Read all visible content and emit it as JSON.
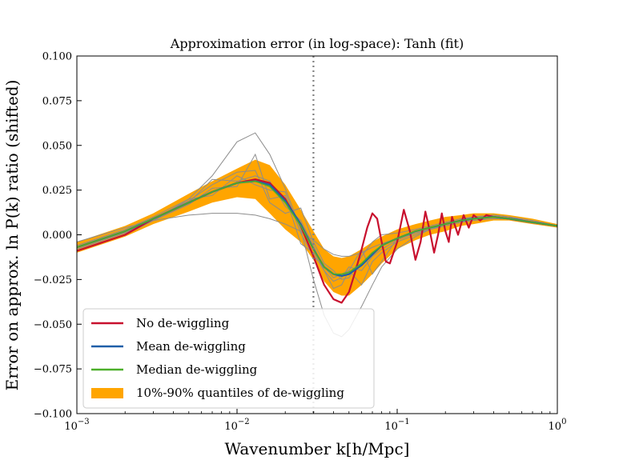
{
  "chart_data": {
    "type": "line",
    "title": "Approximation error (in log-space): Tanh (fit)",
    "xlabel": "Wavenumber k[h/Mpc]",
    "ylabel": "Error on approx. ln P(k) ratio (shifted)",
    "xscale": "log",
    "xlim": [
      0.001,
      1
    ],
    "ylim": [
      -0.1,
      0.1
    ],
    "x_ticks": [
      {
        "value": 0.001,
        "base": "10",
        "exp": "−3"
      },
      {
        "value": 0.01,
        "base": "10",
        "exp": "−2"
      },
      {
        "value": 0.1,
        "base": "10",
        "exp": "−1"
      },
      {
        "value": 1,
        "base": "10",
        "exp": "0"
      }
    ],
    "y_ticks": [
      {
        "value": 0.1,
        "label": "0.100"
      },
      {
        "value": 0.075,
        "label": "0.075"
      },
      {
        "value": 0.05,
        "label": "0.050"
      },
      {
        "value": 0.025,
        "label": "0.025"
      },
      {
        "value": 0.0,
        "label": "0.000"
      },
      {
        "value": -0.025,
        "label": "−0.025"
      },
      {
        "value": -0.05,
        "label": "−0.050"
      },
      {
        "value": -0.075,
        "label": "−0.075"
      },
      {
        "value": -0.1,
        "label": "−0.100"
      }
    ],
    "vline": {
      "x": 0.03,
      "style": "dotted",
      "color": "#808080"
    },
    "legend_position": "lower-left",
    "colors": {
      "no_dewiggling": "#c8102e",
      "mean": "#1f5fa8",
      "median": "#4caf2a",
      "quantile_band": "#ffa500",
      "samples": "#8c8c8c"
    },
    "legend": [
      {
        "key": "no_dewiggling",
        "label": "No de-wiggling",
        "kind": "line"
      },
      {
        "key": "mean",
        "label": "Mean de-wiggling",
        "kind": "line"
      },
      {
        "key": "median",
        "label": "Median de-wiggling",
        "kind": "line"
      },
      {
        "key": "quantile_band",
        "label": "10%-90% quantiles of de-wiggling",
        "kind": "patch"
      }
    ],
    "series": [
      {
        "key": "no_dewiggling",
        "name": "No de-wiggling",
        "x": [
          0.001,
          0.002,
          0.003,
          0.005,
          0.007,
          0.01,
          0.013,
          0.016,
          0.02,
          0.025,
          0.03,
          0.035,
          0.04,
          0.045,
          0.05,
          0.055,
          0.06,
          0.065,
          0.07,
          0.075,
          0.08,
          0.085,
          0.09,
          0.1,
          0.11,
          0.12,
          0.13,
          0.14,
          0.15,
          0.16,
          0.17,
          0.18,
          0.19,
          0.2,
          0.21,
          0.22,
          0.24,
          0.26,
          0.28,
          0.3,
          0.33,
          0.36,
          0.4,
          0.5,
          0.7,
          1.0
        ],
        "y": [
          -0.009,
          0.0,
          0.009,
          0.018,
          0.024,
          0.029,
          0.031,
          0.029,
          0.02,
          0.005,
          -0.012,
          -0.028,
          -0.036,
          -0.038,
          -0.032,
          -0.02,
          -0.008,
          0.004,
          0.012,
          0.009,
          -0.004,
          -0.015,
          -0.016,
          -0.004,
          0.014,
          0.002,
          -0.014,
          -0.004,
          0.013,
          0.002,
          -0.01,
          0.0,
          0.012,
          0.002,
          -0.004,
          0.01,
          0.0,
          0.011,
          0.004,
          0.011,
          0.008,
          0.011,
          0.01,
          0.009,
          0.007,
          0.005
        ]
      },
      {
        "key": "mean",
        "name": "Mean de-wiggling",
        "x": [
          0.001,
          0.002,
          0.003,
          0.005,
          0.007,
          0.01,
          0.013,
          0.016,
          0.02,
          0.025,
          0.03,
          0.035,
          0.04,
          0.045,
          0.05,
          0.06,
          0.07,
          0.08,
          0.1,
          0.13,
          0.16,
          0.2,
          0.25,
          0.3,
          0.4,
          0.5,
          0.7,
          1.0
        ],
        "y": [
          -0.007,
          0.002,
          0.009,
          0.018,
          0.024,
          0.029,
          0.03,
          0.028,
          0.019,
          0.006,
          -0.008,
          -0.018,
          -0.022,
          -0.023,
          -0.022,
          -0.017,
          -0.011,
          -0.006,
          -0.002,
          0.002,
          0.004,
          0.006,
          0.008,
          0.009,
          0.01,
          0.009,
          0.007,
          0.005
        ]
      },
      {
        "key": "median",
        "name": "Median de-wiggling",
        "x": [
          0.001,
          0.002,
          0.003,
          0.005,
          0.007,
          0.01,
          0.013,
          0.016,
          0.02,
          0.025,
          0.03,
          0.035,
          0.04,
          0.045,
          0.05,
          0.06,
          0.07,
          0.08,
          0.1,
          0.13,
          0.16,
          0.2,
          0.25,
          0.3,
          0.4,
          0.5,
          0.7,
          1.0
        ],
        "y": [
          -0.007,
          0.002,
          0.009,
          0.018,
          0.024,
          0.029,
          0.03,
          0.027,
          0.018,
          0.005,
          -0.008,
          -0.018,
          -0.022,
          -0.022,
          -0.021,
          -0.016,
          -0.01,
          -0.006,
          -0.002,
          0.002,
          0.004,
          0.006,
          0.008,
          0.009,
          0.01,
          0.009,
          0.007,
          0.005
        ]
      }
    ],
    "quantile_band": {
      "x": [
        0.001,
        0.002,
        0.003,
        0.005,
        0.007,
        0.01,
        0.013,
        0.016,
        0.02,
        0.025,
        0.03,
        0.035,
        0.04,
        0.045,
        0.05,
        0.06,
        0.07,
        0.08,
        0.1,
        0.13,
        0.16,
        0.2,
        0.25,
        0.3,
        0.4,
        0.5,
        0.7,
        1.0
      ],
      "lower": [
        -0.01,
        -0.001,
        0.006,
        0.013,
        0.018,
        0.021,
        0.02,
        0.012,
        0.003,
        -0.004,
        -0.014,
        -0.026,
        -0.032,
        -0.034,
        -0.034,
        -0.028,
        -0.022,
        -0.016,
        -0.008,
        -0.003,
        0.0,
        0.002,
        0.005,
        0.006,
        0.008,
        0.008,
        0.006,
        0.004
      ],
      "upper": [
        -0.004,
        0.005,
        0.012,
        0.023,
        0.03,
        0.037,
        0.042,
        0.039,
        0.028,
        0.014,
        0.002,
        -0.008,
        -0.012,
        -0.013,
        -0.012,
        -0.008,
        -0.004,
        -0.001,
        0.003,
        0.006,
        0.008,
        0.01,
        0.011,
        0.012,
        0.012,
        0.011,
        0.009,
        0.006
      ]
    },
    "sample_curves_x": [
      0.001,
      0.002,
      0.003,
      0.005,
      0.007,
      0.01,
      0.013,
      0.016,
      0.02,
      0.025,
      0.03,
      0.035,
      0.04,
      0.045,
      0.05,
      0.06,
      0.07,
      0.08,
      0.1,
      0.13,
      0.16,
      0.2,
      0.25,
      0.3,
      0.4,
      0.5,
      0.7,
      1.0
    ],
    "sample_curves": [
      [
        -0.004,
        0.004,
        0.008,
        0.011,
        0.012,
        0.012,
        0.011,
        0.009,
        0.006,
        0.002,
        -0.003,
        -0.008,
        -0.011,
        -0.012,
        -0.012,
        -0.01,
        -0.007,
        -0.005,
        -0.002,
        0.001,
        0.003,
        0.005,
        0.007,
        0.008,
        0.009,
        0.009,
        0.007,
        0.005
      ],
      [
        -0.008,
        0.001,
        0.008,
        0.02,
        0.033,
        0.052,
        0.057,
        0.045,
        0.026,
        0.003,
        -0.025,
        -0.045,
        -0.055,
        -0.057,
        -0.053,
        -0.04,
        -0.028,
        -0.018,
        -0.008,
        -0.001,
        0.003,
        0.006,
        0.008,
        0.01,
        0.011,
        0.01,
        0.007,
        0.005
      ],
      [
        -0.009,
        0.0,
        0.008,
        0.017,
        0.026,
        0.027,
        0.045,
        0.02,
        0.022,
        -0.005,
        -0.01,
        -0.02,
        -0.03,
        -0.028,
        -0.02,
        -0.008,
        -0.022,
        -0.015,
        -0.002,
        0.002,
        0.004,
        0.006,
        0.008,
        0.009,
        0.01,
        0.009,
        0.007,
        0.005
      ],
      [
        -0.007,
        0.002,
        0.009,
        0.019,
        0.028,
        0.035,
        0.036,
        0.018,
        0.012,
        0.015,
        -0.004,
        -0.016,
        -0.02,
        -0.025,
        -0.024,
        -0.012,
        -0.004,
        0.0,
        0.001,
        0.003,
        0.005,
        0.007,
        0.009,
        0.01,
        0.011,
        0.01,
        0.008,
        0.005
      ],
      [
        -0.006,
        0.003,
        0.01,
        0.02,
        0.022,
        0.033,
        0.028,
        0.025,
        0.024,
        0.001,
        -0.012,
        -0.018,
        -0.024,
        -0.022,
        -0.02,
        -0.028,
        -0.015,
        -0.01,
        -0.004,
        0.0,
        0.003,
        0.005,
        0.007,
        0.009,
        0.01,
        0.009,
        0.007,
        0.005
      ],
      [
        -0.008,
        0.001,
        0.009,
        0.018,
        0.031,
        0.03,
        0.033,
        0.03,
        0.016,
        0.008,
        -0.006,
        -0.02,
        -0.026,
        -0.024,
        -0.018,
        -0.02,
        -0.012,
        -0.008,
        -0.003,
        0.001,
        0.003,
        0.006,
        0.008,
        0.009,
        0.01,
        0.009,
        0.007,
        0.005
      ]
    ]
  }
}
